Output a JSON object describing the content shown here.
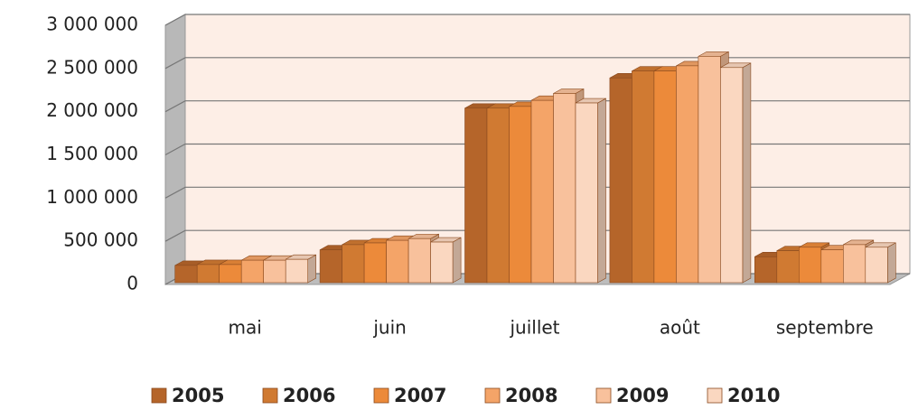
{
  "chart_data": {
    "type": "bar3d",
    "categories": [
      "mai",
      "juin",
      "juillet",
      "août",
      "septembre"
    ],
    "series": [
      {
        "name": "2005",
        "color": "#b5652a",
        "values": [
          200000,
          380000,
          2020000,
          2370000,
          300000
        ]
      },
      {
        "name": "2006",
        "color": "#d07a32",
        "values": [
          210000,
          440000,
          2020000,
          2450000,
          370000
        ]
      },
      {
        "name": "2007",
        "color": "#ec8a3a",
        "values": [
          210000,
          460000,
          2040000,
          2450000,
          410000
        ]
      },
      {
        "name": "2008",
        "color": "#f4a468",
        "values": [
          260000,
          490000,
          2110000,
          2510000,
          380000
        ]
      },
      {
        "name": "2009",
        "color": "#f8c19c",
        "values": [
          260000,
          510000,
          2190000,
          2620000,
          440000
        ]
      },
      {
        "name": "2010",
        "color": "#fad7c0",
        "values": [
          270000,
          470000,
          2080000,
          2490000,
          410000
        ]
      }
    ],
    "ylim": [
      0,
      3000000
    ],
    "yticks": [
      0,
      {
        "value": 500000,
        "label": "500 000"
      },
      {
        "value": 1000000,
        "label": "1 000 000"
      },
      {
        "value": 1500000,
        "label": "1 500 000"
      },
      {
        "value": 2000000,
        "label": "2 000 000"
      },
      {
        "value": 2500000,
        "label": "2 500 000"
      },
      {
        "value": 3000000,
        "label": "3 000 000"
      }
    ],
    "grid": true,
    "legend": "bottom"
  }
}
